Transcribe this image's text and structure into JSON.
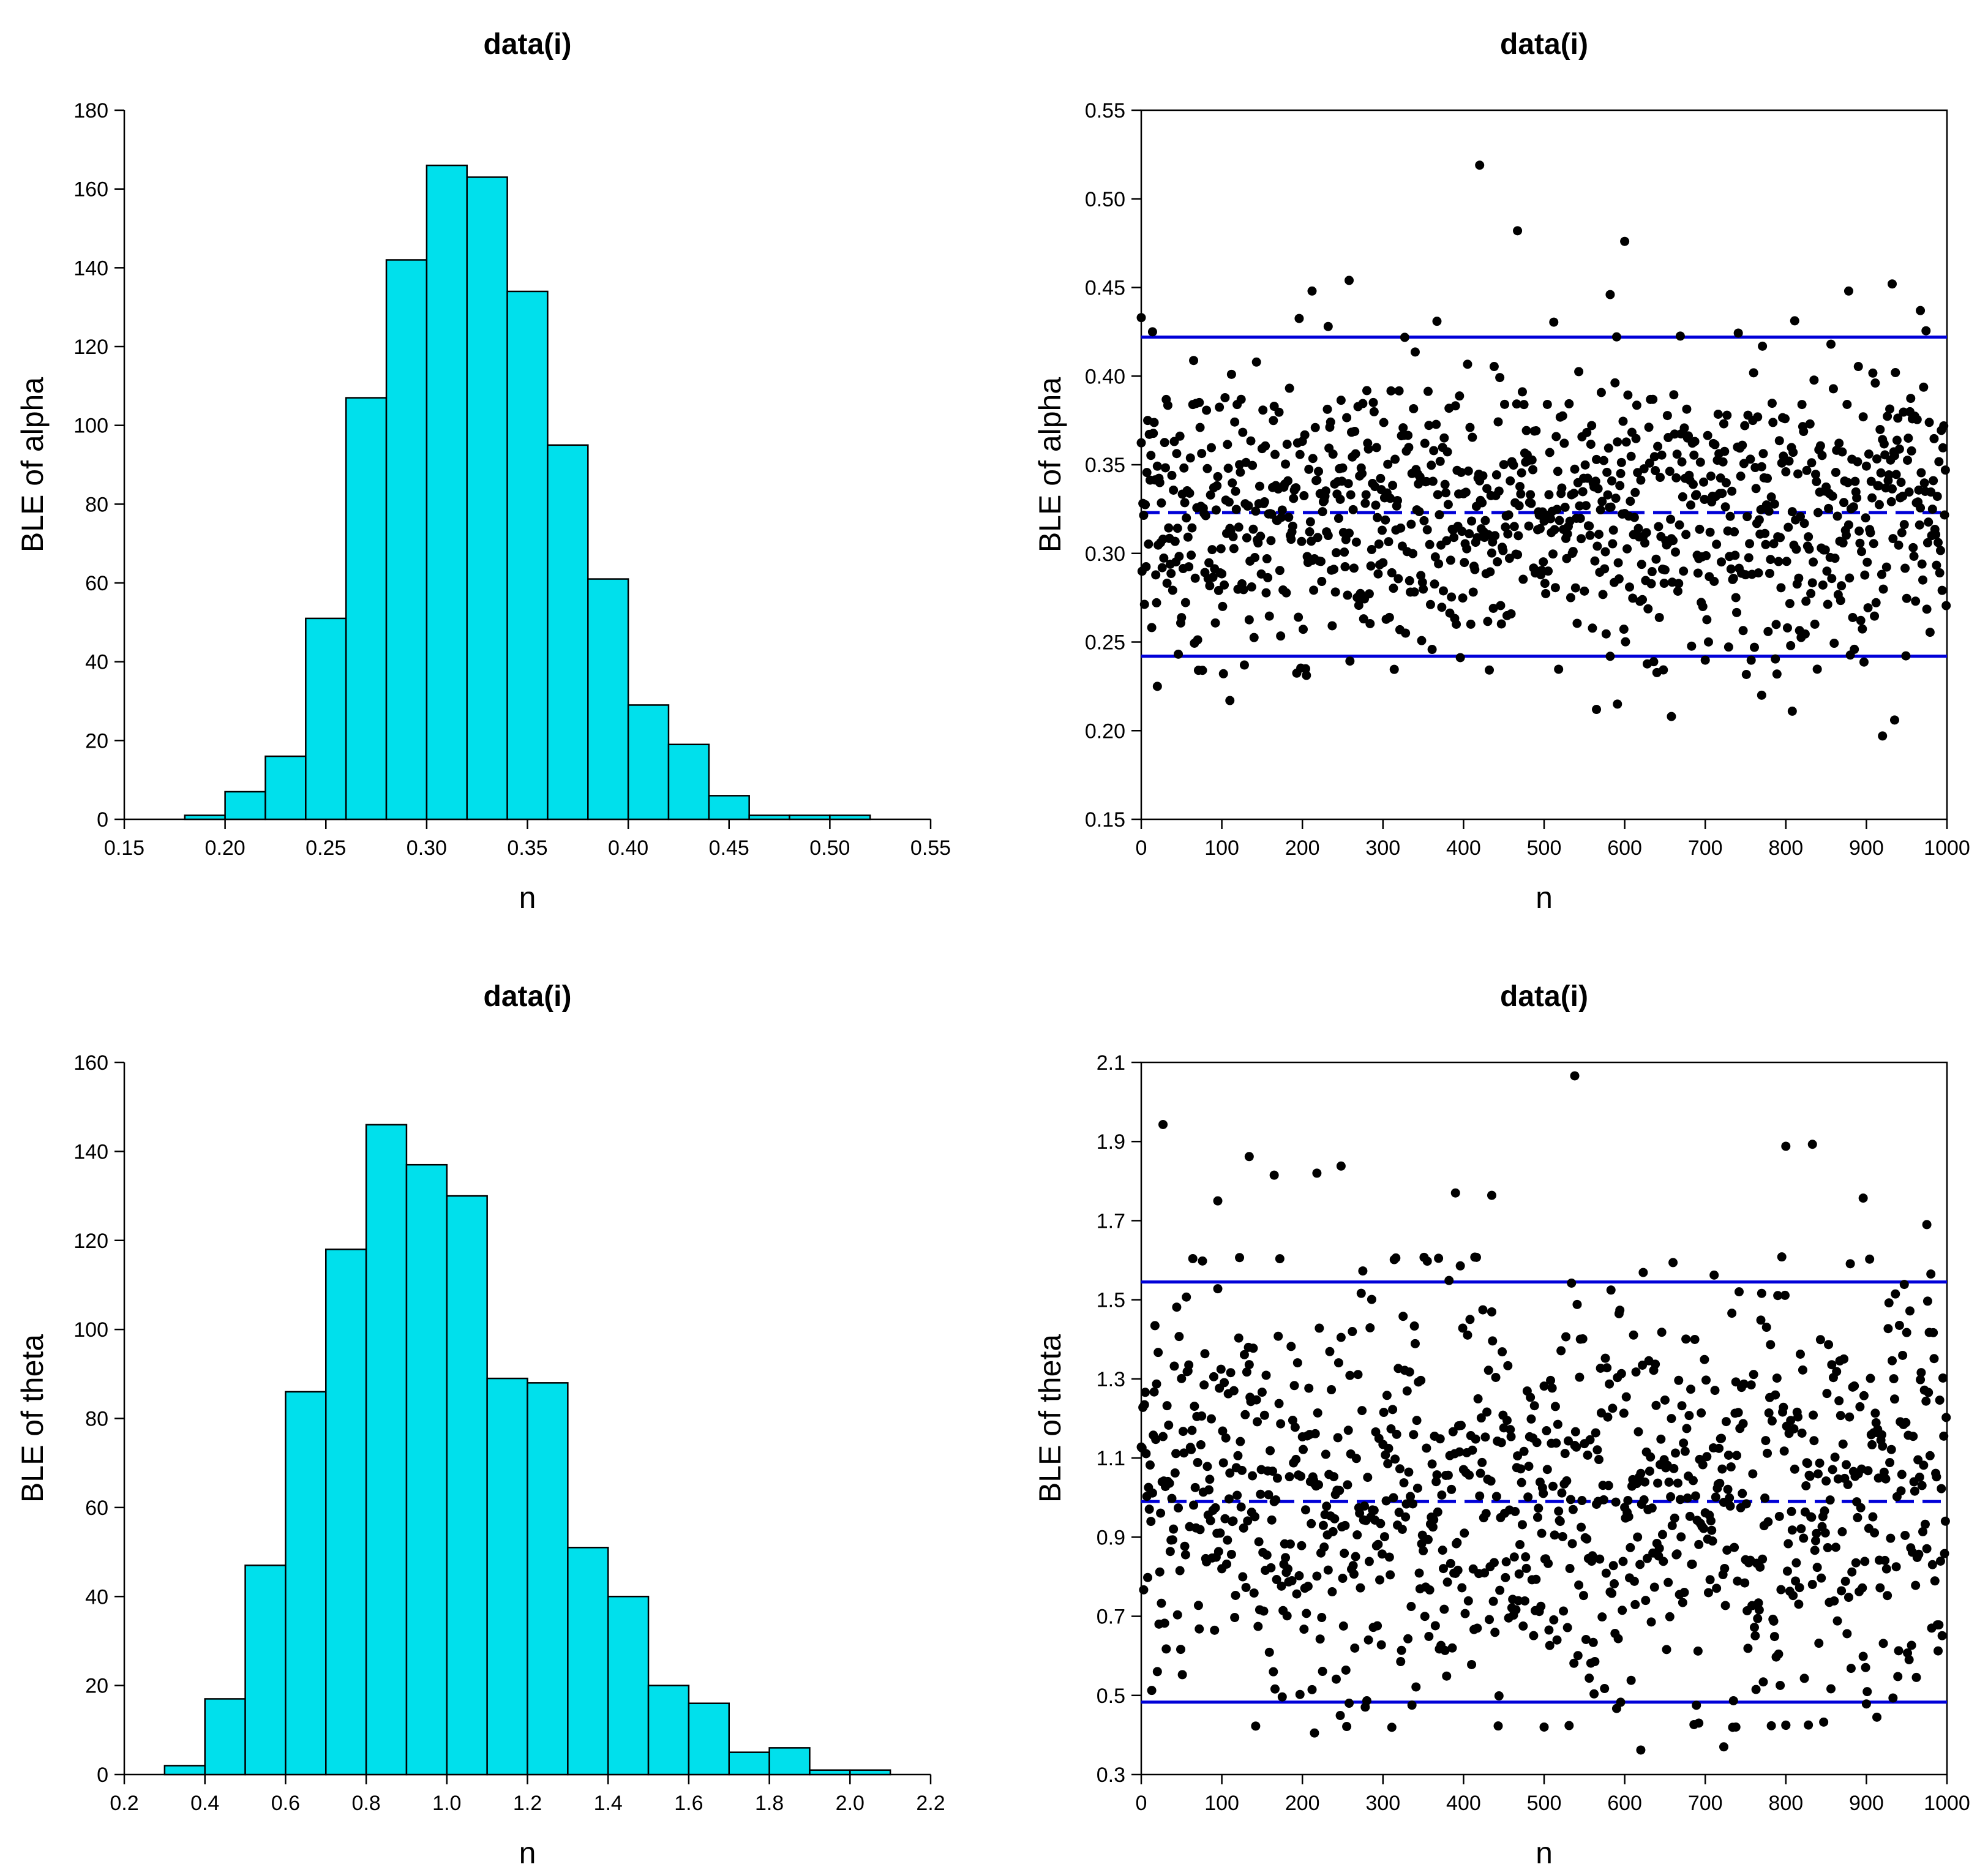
{
  "colors": {
    "bar_fill": "#00e0ec",
    "bar_edge": "#000000",
    "ref_line": "#0000d8",
    "point": "#000000"
  },
  "chart_data": [
    {
      "id": "hist_alpha",
      "type": "bar",
      "title": "data(i)",
      "xlabel": "n",
      "ylabel": "BLE of alpha",
      "xlim": [
        0.15,
        0.55
      ],
      "ylim": [
        0,
        180
      ],
      "xticks": [
        "0.15",
        "0.20",
        "0.25",
        "0.30",
        "0.35",
        "0.40",
        "0.45",
        "0.50",
        "0.55"
      ],
      "yticks": [
        "0",
        "20",
        "40",
        "60",
        "80",
        "100",
        "120",
        "140",
        "160",
        "180"
      ],
      "bin_start": 0.18,
      "bin_width": 0.02,
      "values": [
        1,
        7,
        16,
        51,
        107,
        142,
        166,
        163,
        134,
        95,
        61,
        29,
        19,
        6,
        1,
        1,
        1
      ]
    },
    {
      "id": "scatter_alpha",
      "type": "scatter",
      "title": "data(i)",
      "xlabel": "n",
      "ylabel": "BLE of alpha",
      "xlim": [
        0,
        1000
      ],
      "ylim": [
        0.15,
        0.55
      ],
      "xticks": [
        "0",
        "100",
        "200",
        "300",
        "400",
        "500",
        "600",
        "700",
        "800",
        "900",
        "1000"
      ],
      "yticks": [
        "0.15",
        "0.20",
        "0.25",
        "0.30",
        "0.35",
        "0.40",
        "0.45",
        "0.50",
        "0.55"
      ],
      "n_points": 1000,
      "mean": 0.323,
      "sd": 0.04,
      "lines": {
        "upper": 0.422,
        "mean": 0.323,
        "lower": 0.242
      },
      "notable_points": [
        [
          420,
          0.519
        ],
        [
          467,
          0.482
        ],
        [
          600,
          0.476
        ],
        [
          258,
          0.454
        ],
        [
          932,
          0.452
        ],
        [
          878,
          0.448
        ],
        [
          212,
          0.448
        ],
        [
          582,
          0.446
        ],
        [
          0,
          0.433
        ],
        [
          967,
          0.437
        ],
        [
          232,
          0.428
        ],
        [
          20,
          0.225
        ],
        [
          110,
          0.217
        ],
        [
          658,
          0.208
        ],
        [
          770,
          0.22
        ],
        [
          808,
          0.211
        ],
        [
          591,
          0.215
        ],
        [
          920,
          0.197
        ],
        [
          935,
          0.206
        ],
        [
          565,
          0.212
        ]
      ]
    },
    {
      "id": "hist_theta",
      "type": "bar",
      "title": "data(i)",
      "xlabel": "n",
      "ylabel": "BLE of theta",
      "xlim": [
        0.2,
        2.2
      ],
      "ylim": [
        0,
        160
      ],
      "xticks": [
        "0.2",
        "0.4",
        "0.6",
        "0.8",
        "1.0",
        "1.2",
        "1.4",
        "1.6",
        "1.8",
        "2.0",
        "2.2"
      ],
      "yticks": [
        "0",
        "20",
        "40",
        "60",
        "80",
        "100",
        "120",
        "140",
        "160"
      ],
      "bin_start": 0.3,
      "bin_width": 0.1,
      "values": [
        2,
        17,
        47,
        86,
        118,
        146,
        137,
        130,
        89,
        88,
        51,
        40,
        20,
        16,
        5,
        6,
        1,
        1
      ]
    },
    {
      "id": "scatter_theta",
      "type": "scatter",
      "title": "data(i)",
      "xlabel": "n",
      "ylabel": "BLE of theta",
      "xlim": [
        0,
        1000
      ],
      "ylim": [
        0.3,
        2.1
      ],
      "xticks": [
        "0",
        "100",
        "200",
        "300",
        "400",
        "500",
        "600",
        "700",
        "800",
        "900",
        "1000"
      ],
      "yticks": [
        "0.3",
        "0.5",
        "0.7",
        "0.9",
        "1.1",
        "1.3",
        "1.5",
        "1.7",
        "1.9",
        "2.1"
      ],
      "n_points": 1000,
      "mean": 0.99,
      "sd": 0.26,
      "lines": {
        "upper": 1.545,
        "mean": 0.99,
        "lower": 0.483
      },
      "notable_points": [
        [
          538,
          2.066
        ],
        [
          27,
          1.943
        ],
        [
          833,
          1.893
        ],
        [
          800,
          1.888
        ],
        [
          134,
          1.862
        ],
        [
          248,
          1.838
        ],
        [
          165,
          1.815
        ],
        [
          218,
          1.82
        ],
        [
          390,
          1.77
        ],
        [
          435,
          1.764
        ],
        [
          896,
          1.757
        ],
        [
          95,
          1.75
        ],
        [
          975,
          1.69
        ],
        [
          620,
          0.362
        ],
        [
          723,
          0.37
        ],
        [
          215,
          0.405
        ],
        [
          500,
          0.42
        ],
        [
          800,
          0.425
        ],
        [
          692,
          0.43
        ],
        [
          738,
          0.42
        ],
        [
          913,
          0.445
        ]
      ]
    }
  ]
}
